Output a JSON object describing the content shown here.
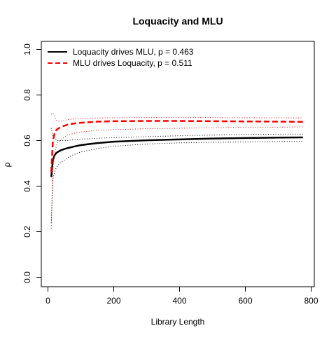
{
  "chart_data": {
    "type": "line",
    "title": "Loquacity and MLU",
    "xlabel": "Library Length",
    "ylabel": "ρ",
    "xlim": [
      0,
      800
    ],
    "ylim": [
      0,
      1
    ],
    "x_ticks": [
      "0",
      "200",
      "400",
      "600",
      "800"
    ],
    "y_ticks": [
      "0.0",
      "0.2",
      "0.4",
      "0.6",
      "0.8",
      "1.0"
    ],
    "legend": {
      "position": "top-left",
      "entries": [
        {
          "label": "Loquacity drives MLU, p = 0.463",
          "color": "#000000",
          "style": "solid"
        },
        {
          "label": "MLU drives Loquacity, p = 0.511",
          "color": "#ff0000",
          "style": "dashed"
        }
      ]
    },
    "grid": false,
    "series": [
      {
        "name": "Loquacity drives MLU, p = 0.463",
        "color": "#000000",
        "style": "solid",
        "x": [
          10,
          15,
          20,
          25,
          30,
          40,
          50,
          60,
          80,
          100,
          150,
          200,
          300,
          400,
          500,
          600,
          700,
          775
        ],
        "values": [
          0.44,
          0.515,
          0.535,
          0.545,
          0.55,
          0.558,
          0.563,
          0.567,
          0.574,
          0.58,
          0.589,
          0.595,
          0.601,
          0.605,
          0.609,
          0.611,
          0.613,
          0.614
        ],
        "upper": [
          0.655,
          0.62,
          0.61,
          0.605,
          0.6,
          0.6,
          0.6,
          0.6,
          0.605,
          0.606,
          0.61,
          0.613,
          0.617,
          0.621,
          0.624,
          0.627,
          0.628,
          0.628
        ],
        "lower": [
          0.24,
          0.43,
          0.46,
          0.48,
          0.49,
          0.505,
          0.515,
          0.525,
          0.54,
          0.55,
          0.565,
          0.575,
          0.585,
          0.59,
          0.592,
          0.594,
          0.596,
          0.597
        ]
      },
      {
        "name": "MLU drives Loquacity, p = 0.511",
        "color": "#ff0000",
        "style": "dashed",
        "x": [
          10,
          15,
          20,
          25,
          30,
          40,
          50,
          60,
          80,
          100,
          150,
          200,
          300,
          400,
          500,
          600,
          700,
          775
        ],
        "values": [
          0.46,
          0.6,
          0.63,
          0.645,
          0.652,
          0.66,
          0.665,
          0.67,
          0.675,
          0.678,
          0.683,
          0.685,
          0.686,
          0.686,
          0.685,
          0.684,
          0.683,
          0.682
        ],
        "upper": [
          0.715,
          0.72,
          0.71,
          0.69,
          0.685,
          0.685,
          0.688,
          0.692,
          0.695,
          0.697,
          0.699,
          0.7,
          0.701,
          0.701,
          0.701,
          0.7,
          0.7,
          0.699
        ],
        "lower": [
          0.215,
          0.48,
          0.54,
          0.575,
          0.59,
          0.605,
          0.615,
          0.625,
          0.632,
          0.638,
          0.645,
          0.648,
          0.652,
          0.654,
          0.656,
          0.658,
          0.659,
          0.66
        ]
      }
    ]
  }
}
